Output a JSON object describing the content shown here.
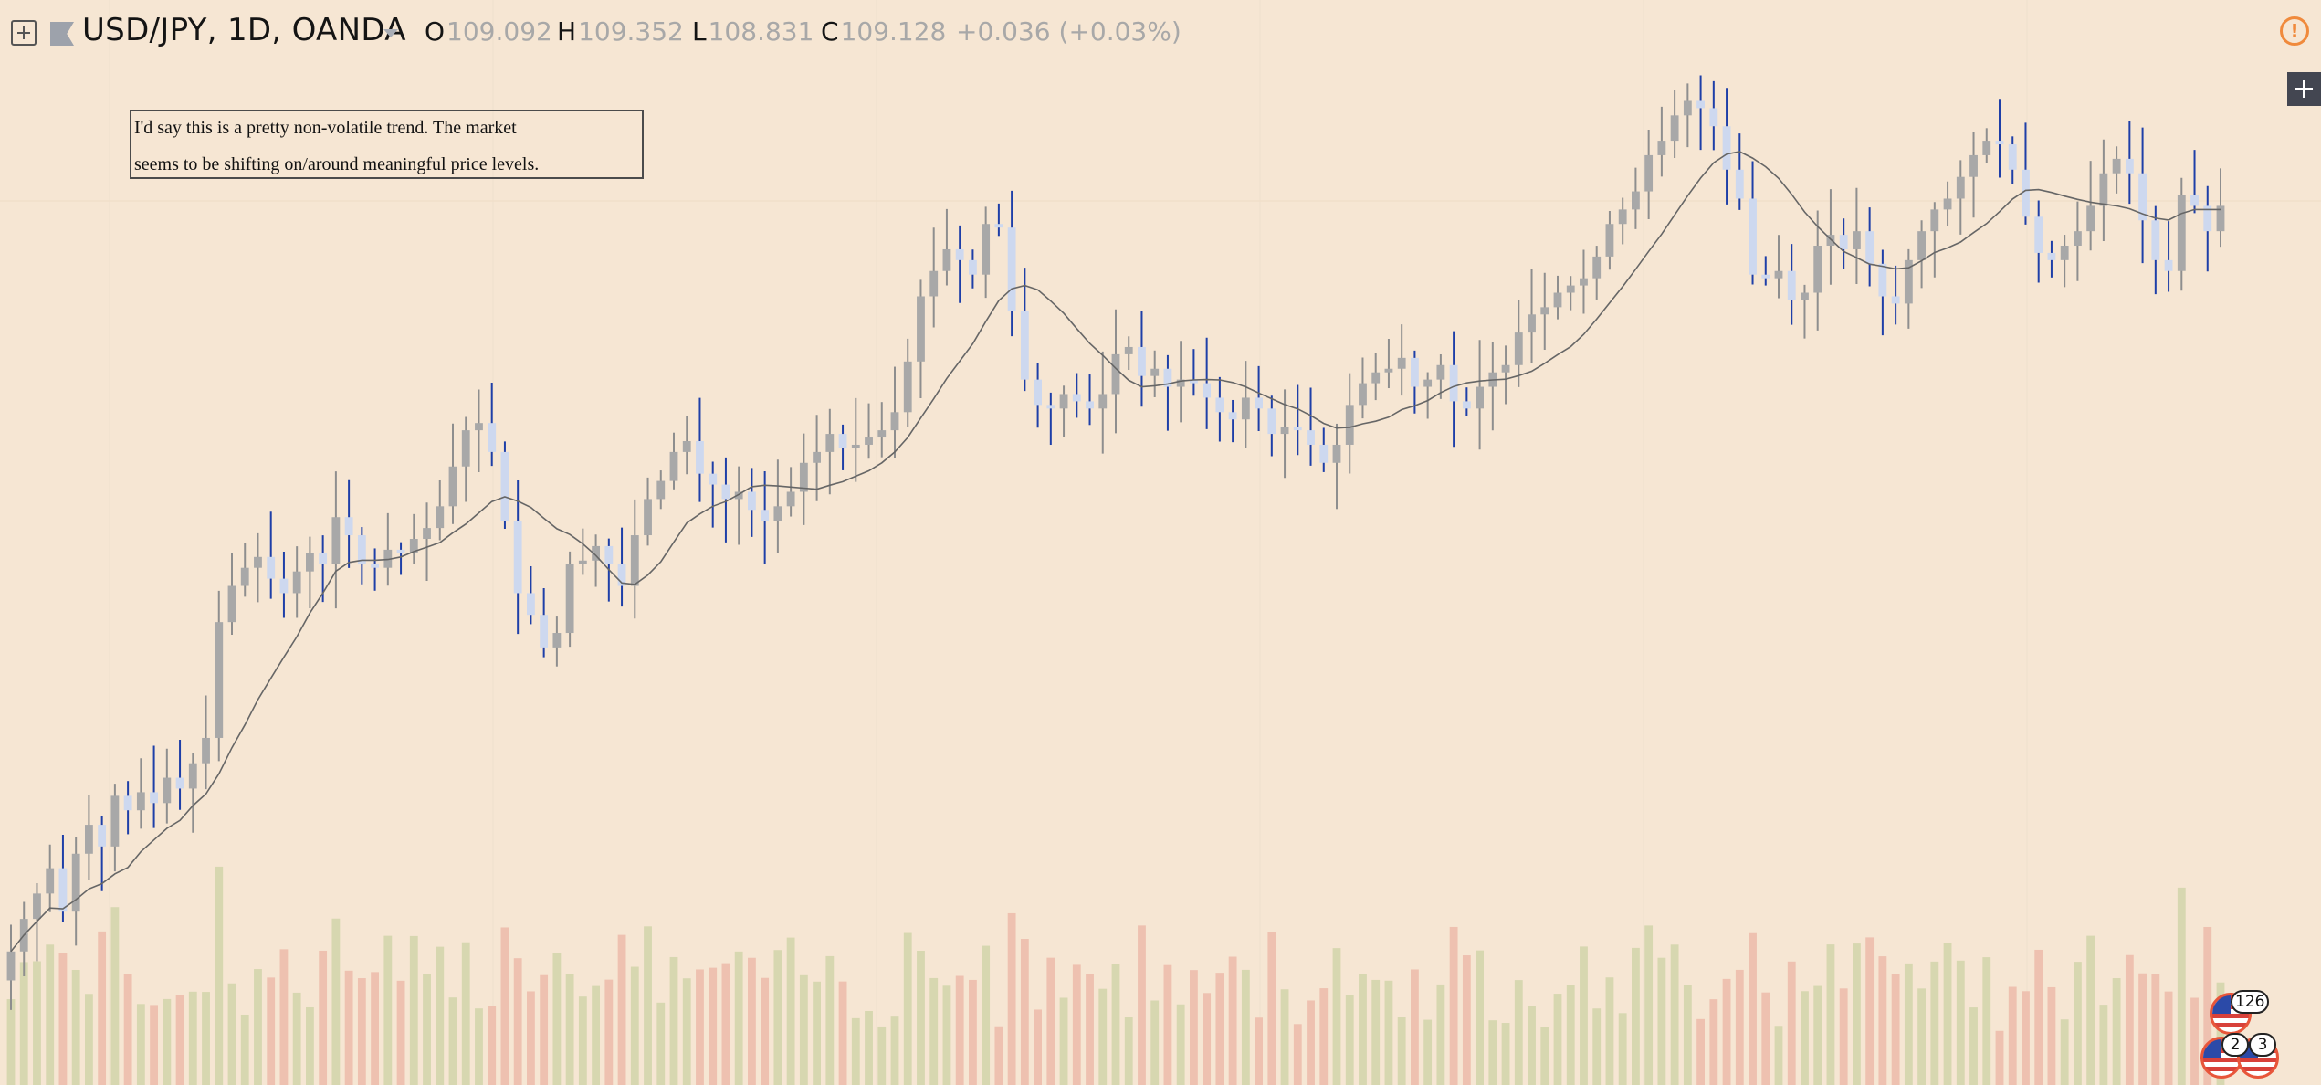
{
  "toolbar": {
    "symbol": "USD/JPY, 1D, OANDA",
    "open_key": "O",
    "open": "109.092",
    "high_key": "H",
    "high": "109.352",
    "low_key": "L",
    "low": "108.831",
    "close_key": "C",
    "close": "109.128",
    "change": "+0.036 (+0.03%)",
    "icons": [
      "add-symbol-icon",
      "flag-icon",
      "chevron-down-icon",
      "alert-icon",
      "plus-icon"
    ]
  },
  "annotation": {
    "line1": "I'd say this is a pretty non-volatile trend. The market",
    "line2": "seems to be shifting on/around meaningful price levels."
  },
  "events": {
    "badge_icon": "us-flag-icon",
    "count1": "126",
    "count2": "2",
    "count3": "3"
  },
  "colors": {
    "background": "#f6e6d3",
    "bull_body": "#a8a8a8",
    "bear_body": "#cdd8ef",
    "bear_wick": "#1e3fa8",
    "ma_line": "#666666",
    "vol_up": "#d7d7b0",
    "vol_down": "#eec1b0",
    "alert": "#f08a3c"
  },
  "chart_data": {
    "type": "candlestick",
    "instrument": "USD/JPY",
    "interval": "1D",
    "source": "OANDA",
    "close": [
      103.55,
      104.0,
      104.35,
      104.7,
      104.1,
      104.9,
      105.3,
      105.0,
      105.7,
      105.5,
      105.75,
      105.6,
      105.95,
      105.8,
      106.15,
      106.5,
      108.1,
      108.6,
      108.85,
      109.0,
      108.7,
      108.5,
      108.8,
      109.05,
      108.9,
      109.55,
      109.3,
      108.9,
      108.85,
      109.1,
      109.05,
      109.25,
      109.4,
      109.7,
      110.25,
      110.75,
      110.85,
      110.45,
      109.5,
      108.5,
      108.2,
      107.75,
      107.95,
      108.9,
      108.95,
      109.15,
      108.9,
      108.6,
      109.3,
      109.8,
      110.05,
      110.45,
      110.6,
      110.15,
      110.0,
      109.8,
      109.9,
      109.65,
      109.5,
      109.7,
      109.9,
      110.3,
      110.45,
      110.7,
      110.5,
      110.55,
      110.65,
      110.75,
      111.0,
      111.7,
      112.6,
      112.95,
      113.25,
      113.1,
      112.9,
      113.6,
      113.55,
      112.4,
      111.45,
      111.1,
      111.05,
      111.25,
      111.15,
      111.05,
      111.25,
      111.8,
      111.9,
      111.5,
      111.6,
      111.35,
      111.45,
      111.4,
      111.2,
      111.0,
      110.9,
      111.2,
      111.05,
      110.7,
      110.8,
      110.75,
      110.55,
      110.3,
      110.55,
      111.1,
      111.4,
      111.55,
      111.6,
      111.75,
      111.35,
      111.45,
      111.65,
      111.15,
      111.05,
      111.35,
      111.55,
      111.65,
      112.1,
      112.35,
      112.45,
      112.65,
      112.75,
      112.85,
      113.15,
      113.6,
      113.8,
      114.05,
      114.55,
      114.75,
      115.1,
      115.3,
      115.2,
      114.95,
      114.35,
      113.95,
      112.9,
      112.85,
      112.95,
      112.55,
      112.65,
      113.3,
      113.45,
      113.25,
      113.5,
      113.05,
      112.6,
      112.5,
      113.1,
      113.5,
      113.8,
      113.95,
      114.25,
      114.55,
      114.75,
      114.7,
      114.35,
      113.7,
      113.2,
      113.1,
      113.3,
      113.5,
      113.85,
      114.3,
      114.5,
      114.3,
      113.65,
      113.1,
      112.95,
      114.0,
      113.85,
      113.5,
      113.85
    ]
  }
}
